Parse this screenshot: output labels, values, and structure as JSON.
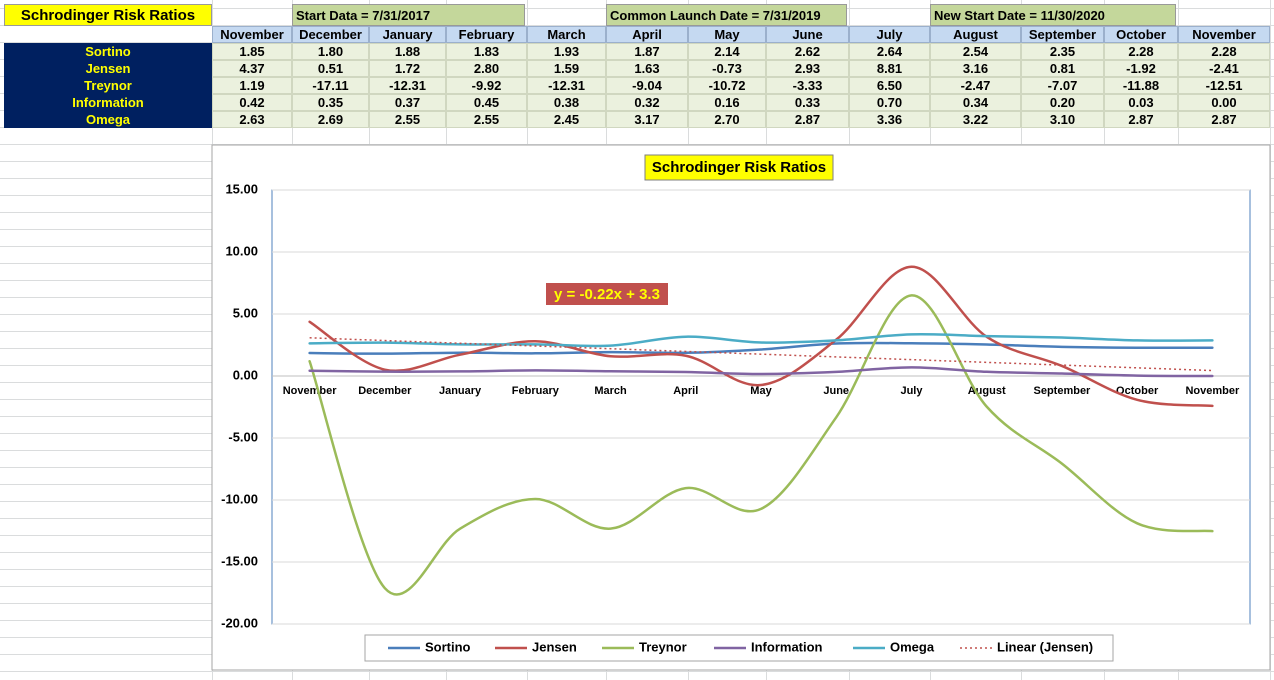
{
  "sheet": {
    "title": "Schrodinger Risk Ratios",
    "date_headers": [
      "Start Data = 7/31/2017",
      "Common Launch Date = 7/31/2019",
      "New Start Date = 11/30/2020"
    ],
    "columns": [
      "November",
      "December",
      "January",
      "February",
      "March",
      "April",
      "May",
      "June",
      "July",
      "August",
      "September",
      "October",
      "November"
    ],
    "rows": [
      {
        "label": "Sortino",
        "cells": [
          "1.85",
          "1.80",
          "1.88",
          "1.83",
          "1.93",
          "1.87",
          "2.14",
          "2.62",
          "2.64",
          "2.54",
          "2.35",
          "2.28",
          "2.28"
        ]
      },
      {
        "label": "Jensen",
        "cells": [
          "4.37",
          "0.51",
          "1.72",
          "2.80",
          "1.59",
          "1.63",
          "-0.73",
          "2.93",
          "8.81",
          "3.16",
          "0.81",
          "-1.92",
          "-2.41"
        ]
      },
      {
        "label": "Treynor",
        "cells": [
          "1.19",
          "-17.11",
          "-12.31",
          "-9.92",
          "-12.31",
          "-9.04",
          "-10.72",
          "-3.33",
          "6.50",
          "-2.47",
          "-7.07",
          "-11.88",
          "-12.51"
        ]
      },
      {
        "label": "Information",
        "cells": [
          "0.42",
          "0.35",
          "0.37",
          "0.45",
          "0.38",
          "0.32",
          "0.16",
          "0.33",
          "0.70",
          "0.34",
          "0.20",
          "0.03",
          "0.00"
        ]
      },
      {
        "label": "Omega",
        "cells": [
          "2.63",
          "2.69",
          "2.55",
          "2.55",
          "2.45",
          "3.17",
          "2.70",
          "2.87",
          "3.36",
          "3.22",
          "3.10",
          "2.87",
          "2.87"
        ]
      }
    ]
  },
  "chart_data": {
    "type": "line",
    "title": "Schrodinger Risk Ratios",
    "categories": [
      "November",
      "December",
      "January",
      "February",
      "March",
      "April",
      "May",
      "June",
      "July",
      "August",
      "September",
      "October",
      "November"
    ],
    "series": [
      {
        "name": "Sortino",
        "color": "#4a7ebb",
        "values": [
          1.85,
          1.8,
          1.88,
          1.83,
          1.93,
          1.87,
          2.14,
          2.62,
          2.64,
          2.54,
          2.35,
          2.28,
          2.28
        ]
      },
      {
        "name": "Jensen",
        "color": "#c0504d",
        "values": [
          4.37,
          0.51,
          1.72,
          2.8,
          1.59,
          1.63,
          -0.73,
          2.93,
          8.81,
          3.16,
          0.81,
          -1.92,
          -2.41
        ]
      },
      {
        "name": "Treynor",
        "color": "#9bbb59",
        "values": [
          1.19,
          -17.11,
          -12.31,
          -9.92,
          -12.31,
          -9.04,
          -10.72,
          -3.33,
          6.5,
          -2.47,
          -7.07,
          -11.88,
          -12.51
        ]
      },
      {
        "name": "Information",
        "color": "#8064a2",
        "values": [
          0.42,
          0.35,
          0.37,
          0.45,
          0.38,
          0.32,
          0.16,
          0.33,
          0.7,
          0.34,
          0.2,
          0.03,
          0.0
        ]
      },
      {
        "name": "Omega",
        "color": "#4bacc6",
        "values": [
          2.63,
          2.69,
          2.55,
          2.55,
          2.45,
          3.17,
          2.7,
          2.87,
          3.36,
          3.22,
          3.1,
          2.87,
          2.87
        ]
      }
    ],
    "trendline": {
      "name": "Linear (Jensen)",
      "color": "#c0504d",
      "slope": -0.22,
      "intercept": 3.3,
      "equation": "y = -0.22x + 3.3"
    },
    "ylim": [
      -20,
      15
    ],
    "yticks": [
      {
        "value": -20,
        "label": "-20.00"
      },
      {
        "value": -15,
        "label": "-15.00"
      },
      {
        "value": -10,
        "label": "-10.00"
      },
      {
        "value": -5,
        "label": "-5.00"
      },
      {
        "value": 0,
        "label": "0.00"
      },
      {
        "value": 5,
        "label": "5.00"
      },
      {
        "value": 10,
        "label": "10.00"
      },
      {
        "value": 15,
        "label": "15.00"
      }
    ],
    "grid": true,
    "smooth": true,
    "legend": "bottom"
  }
}
